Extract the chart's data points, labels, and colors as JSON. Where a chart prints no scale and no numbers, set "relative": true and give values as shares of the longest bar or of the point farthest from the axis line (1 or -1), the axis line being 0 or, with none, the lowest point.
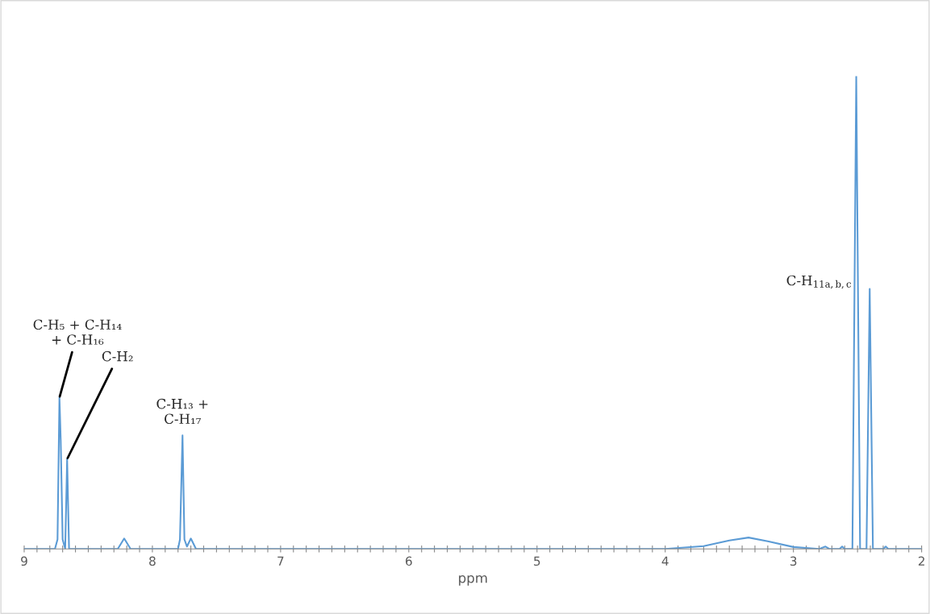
{
  "chart_data": {
    "type": "line",
    "relative": true,
    "xlabel": "ppm",
    "xlim": [
      9,
      2
    ],
    "xticks": [
      9,
      {
        "value": 8.9,
        "label": null
      },
      {
        "value": 8.8,
        "label": null
      },
      {
        "value": 8.7,
        "label": null
      },
      {
        "value": 8.6,
        "label": null
      },
      {
        "value": 8.5,
        "label": null
      },
      {
        "value": 8.4,
        "label": null
      },
      {
        "value": 8.3,
        "label": null
      },
      {
        "value": 8.2,
        "label": null
      },
      {
        "value": 8.1,
        "label": null
      },
      8,
      {
        "value": 7.9,
        "label": null
      },
      {
        "value": 7.8,
        "label": null
      },
      {
        "value": 7.7,
        "label": null
      },
      {
        "value": 7.6,
        "label": null
      },
      {
        "value": 7.5,
        "label": null
      },
      {
        "value": 7.4,
        "label": null
      },
      {
        "value": 7.3,
        "label": null
      },
      {
        "value": 7.2,
        "label": null
      },
      {
        "value": 7.1,
        "label": null
      },
      7,
      {
        "value": 6.9,
        "label": null
      },
      {
        "value": 6.8,
        "label": null
      },
      {
        "value": 6.7,
        "label": null
      },
      {
        "value": 6.6,
        "label": null
      },
      {
        "value": 6.5,
        "label": null
      },
      {
        "value": 6.4,
        "label": null
      },
      {
        "value": 6.3,
        "label": null
      },
      {
        "value": 6.2,
        "label": null
      },
      {
        "value": 6.1,
        "label": null
      },
      6,
      {
        "value": 5.9,
        "label": null
      },
      {
        "value": 5.8,
        "label": null
      },
      {
        "value": 5.7,
        "label": null
      },
      {
        "value": 5.6,
        "label": null
      },
      {
        "value": 5.5,
        "label": null
      },
      {
        "value": 5.4,
        "label": null
      },
      {
        "value": 5.3,
        "label": null
      },
      {
        "value": 5.2,
        "label": null
      },
      {
        "value": 5.1,
        "label": null
      },
      5,
      {
        "value": 4.9,
        "label": null
      },
      {
        "value": 4.8,
        "label": null
      },
      {
        "value": 4.7,
        "label": null
      },
      {
        "value": 4.6,
        "label": null
      },
      {
        "value": 4.5,
        "label": null
      },
      {
        "value": 4.4,
        "label": null
      },
      {
        "value": 4.3,
        "label": null
      },
      {
        "value": 4.2,
        "label": null
      },
      {
        "value": 4.1,
        "label": null
      },
      4,
      {
        "value": 3.9,
        "label": null
      },
      {
        "value": 3.8,
        "label": null
      },
      {
        "value": 3.7,
        "label": null
      },
      {
        "value": 3.6,
        "label": null
      },
      {
        "value": 3.5,
        "label": null
      },
      {
        "value": 3.4,
        "label": null
      },
      {
        "value": 3.3,
        "label": null
      },
      {
        "value": 3.2,
        "label": null
      },
      {
        "value": 3.1,
        "label": null
      },
      3,
      {
        "value": 2.9,
        "label": null
      },
      {
        "value": 2.8,
        "label": null
      },
      {
        "value": 2.7,
        "label": null
      },
      {
        "value": 2.6,
        "label": null
      },
      {
        "value": 2.5,
        "label": null
      },
      {
        "value": 2.4,
        "label": null
      },
      {
        "value": 2.3,
        "label": null
      },
      {
        "value": 2.2,
        "label": null
      },
      {
        "value": 2.1,
        "label": null
      },
      2
    ],
    "grid": false,
    "marker": "none",
    "line_style": "solid",
    "x": [
      9.0,
      8.76,
      8.74,
      8.725,
      8.715,
      8.7,
      8.68,
      8.665,
      8.65,
      8.27,
      8.22,
      8.17,
      7.8,
      7.785,
      7.765,
      7.75,
      7.73,
      7.7,
      7.66,
      4.0,
      3.7,
      3.5,
      3.35,
      3.2,
      3.0,
      2.8,
      2.75,
      2.72,
      2.64,
      2.62,
      2.6,
      2.54,
      2.51,
      2.48,
      2.43,
      2.405,
      2.38,
      2.3,
      2.28,
      2.26,
      2.0
    ],
    "series": [
      {
        "color": "#5b9bd5",
        "values": [
          0,
          0,
          0.02,
          0.32,
          0.23,
          0.02,
          0,
          0.19,
          0,
          0,
          0.022,
          0,
          0,
          0.02,
          0.24,
          0.02,
          0.005,
          0.022,
          0,
          0,
          0.006,
          0.018,
          0.024,
          0.016,
          0.004,
          0,
          0.005,
          0,
          0,
          0.005,
          0,
          0,
          1,
          0,
          0,
          0.55,
          0,
          0,
          0.005,
          0,
          0
        ]
      }
    ],
    "annotations": [
      {
        "text": "C-H₅ + C-H₁₄\n+ C-H₁₆",
        "x": 8.725,
        "y": 0.32
      },
      {
        "text": "C-H₂",
        "x": 8.665,
        "y": 0.19
      },
      {
        "text": "C-H₁₃ +\nC-H₁₇",
        "x": 7.765,
        "y": 0.24
      },
      {
        "text": "C-H$_{11a,b,c}$",
        "x": 2.405,
        "y": 0.55
      }
    ]
  }
}
